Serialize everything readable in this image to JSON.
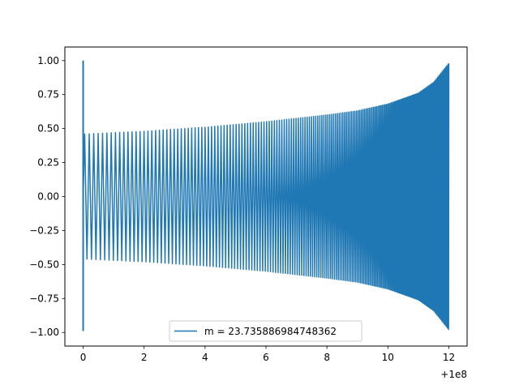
{
  "chart_data": {
    "type": "line",
    "title": "",
    "xlabel": "",
    "ylabel": "",
    "x_offset_label": "+1e8",
    "xlim": [
      -0.6,
      12.6
    ],
    "ylim": [
      -1.1,
      1.1
    ],
    "x_ticks": [
      0,
      2,
      4,
      6,
      8,
      10,
      12
    ],
    "x_tick_labels": [
      "0",
      "2",
      "4",
      "6",
      "8",
      "10",
      "12"
    ],
    "y_ticks": [
      1.0,
      0.75,
      0.5,
      0.25,
      0.0,
      -0.25,
      -0.5,
      -0.75,
      -1.0
    ],
    "y_tick_labels": [
      "1.00",
      "0.75",
      "0.50",
      "0.25",
      "0.00",
      "−0.25",
      "−0.50",
      "−0.75",
      "−1.00"
    ],
    "grid": false,
    "legend_position": "lower-center",
    "series": [
      {
        "name": "m = 23.735886984748362",
        "color": "#1f77b4",
        "initial_spike": {
          "x": 0.0,
          "y_max": 1.0,
          "y_min": -0.99
        },
        "envelope": {
          "x": [
            0.1,
            2,
            4,
            6,
            8,
            9,
            10,
            11,
            11.5,
            12.0
          ],
          "y": [
            0.46,
            0.48,
            0.51,
            0.55,
            0.6,
            0.63,
            0.68,
            0.76,
            0.84,
            0.98
          ]
        },
        "oscillation_x_range": [
          0.05,
          12.0
        ]
      }
    ]
  }
}
